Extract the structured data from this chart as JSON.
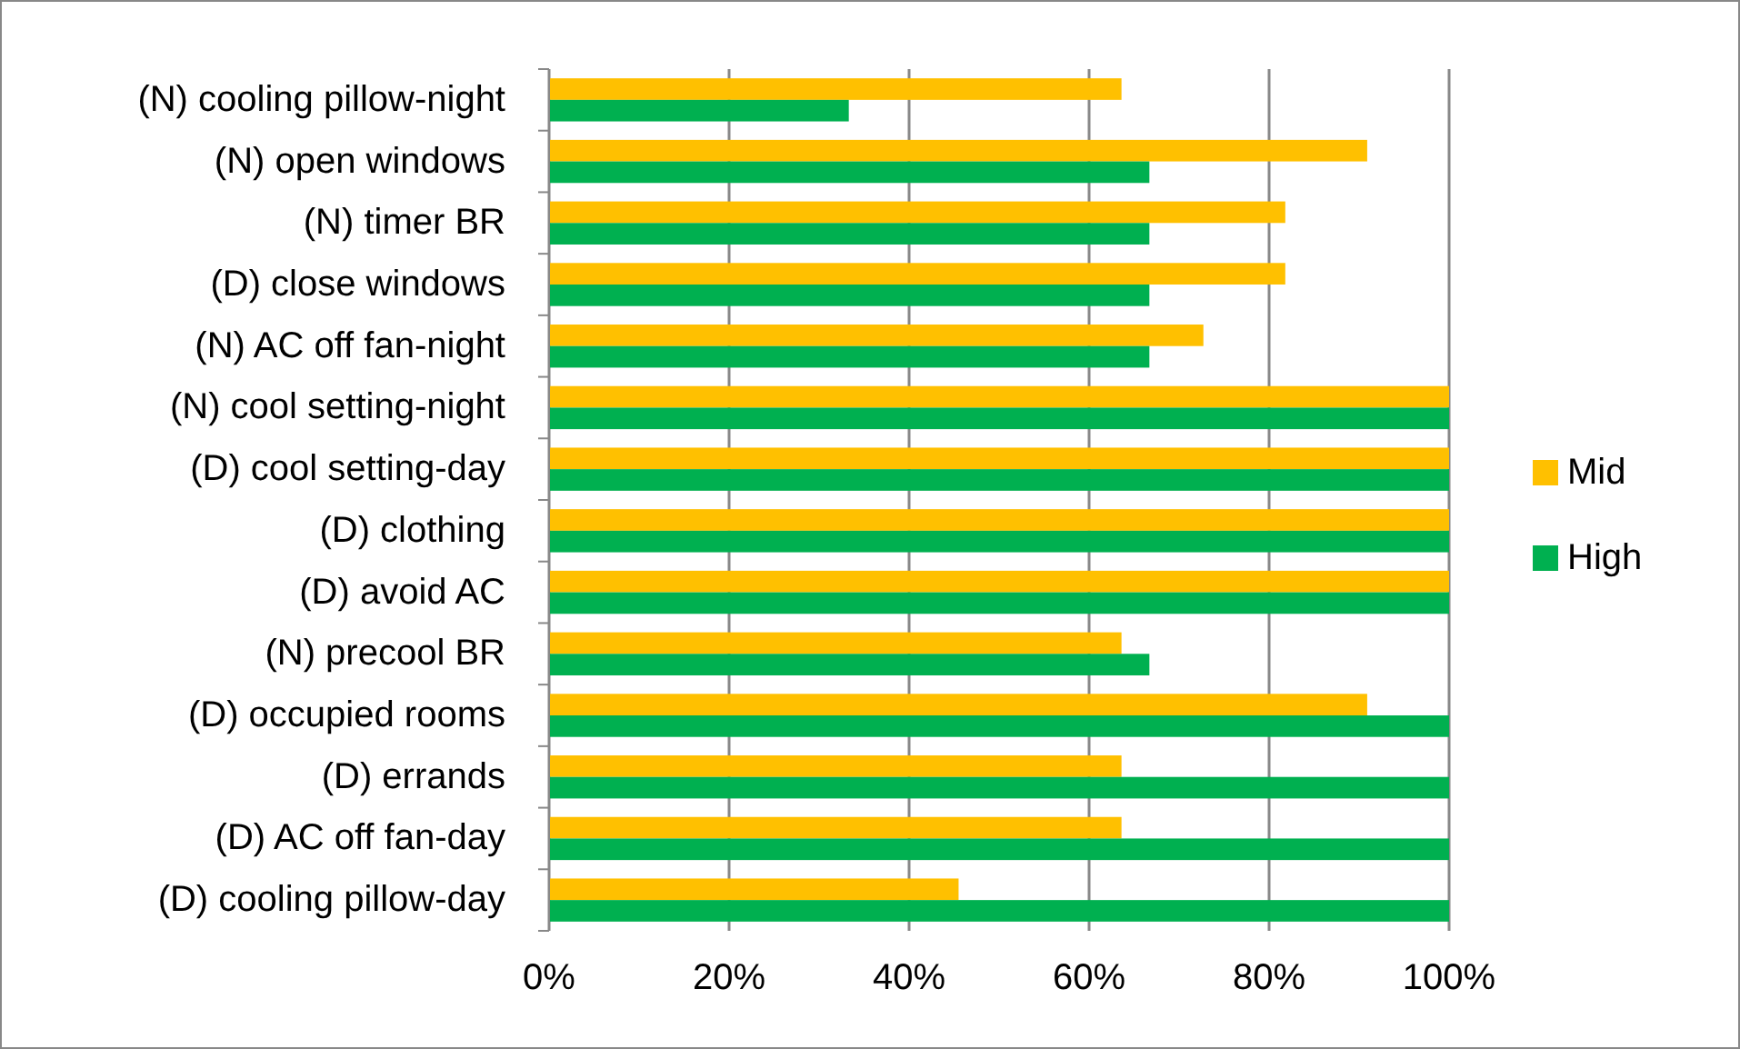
{
  "chart_data": {
    "type": "bar",
    "orientation": "horizontal",
    "categories": [
      "(N) cooling pillow-night",
      "(N) open windows",
      "(N) timer BR",
      "(D) close windows",
      "(N) AC off fan-night",
      "(N) cool setting-night",
      "(D) cool setting-day",
      "(D) clothing",
      "(D) avoid AC",
      "(N) precool BR",
      "(D) occupied rooms",
      "(D) errands",
      "(D) AC off fan-day",
      "(D) cooling pillow-day"
    ],
    "series": [
      {
        "name": "Mid",
        "color": "#ffc000",
        "values": [
          63.6,
          90.9,
          81.8,
          81.8,
          72.7,
          100,
          100,
          100,
          100,
          63.6,
          90.9,
          63.6,
          63.6,
          45.5
        ]
      },
      {
        "name": "High",
        "color": "#00b050",
        "values": [
          33.3,
          66.7,
          66.7,
          66.7,
          66.7,
          100,
          100,
          100,
          100,
          66.7,
          100,
          100,
          100,
          100
        ]
      }
    ],
    "xlim": [
      0,
      100
    ],
    "xticks": [
      {
        "value": 0,
        "label": "0%"
      },
      {
        "value": 20,
        "label": "20%"
      },
      {
        "value": 40,
        "label": "40%"
      },
      {
        "value": 60,
        "label": "60%"
      },
      {
        "value": 80,
        "label": "80%"
      },
      {
        "value": 100,
        "label": "100%"
      }
    ],
    "grid": "x",
    "legend": "right"
  }
}
